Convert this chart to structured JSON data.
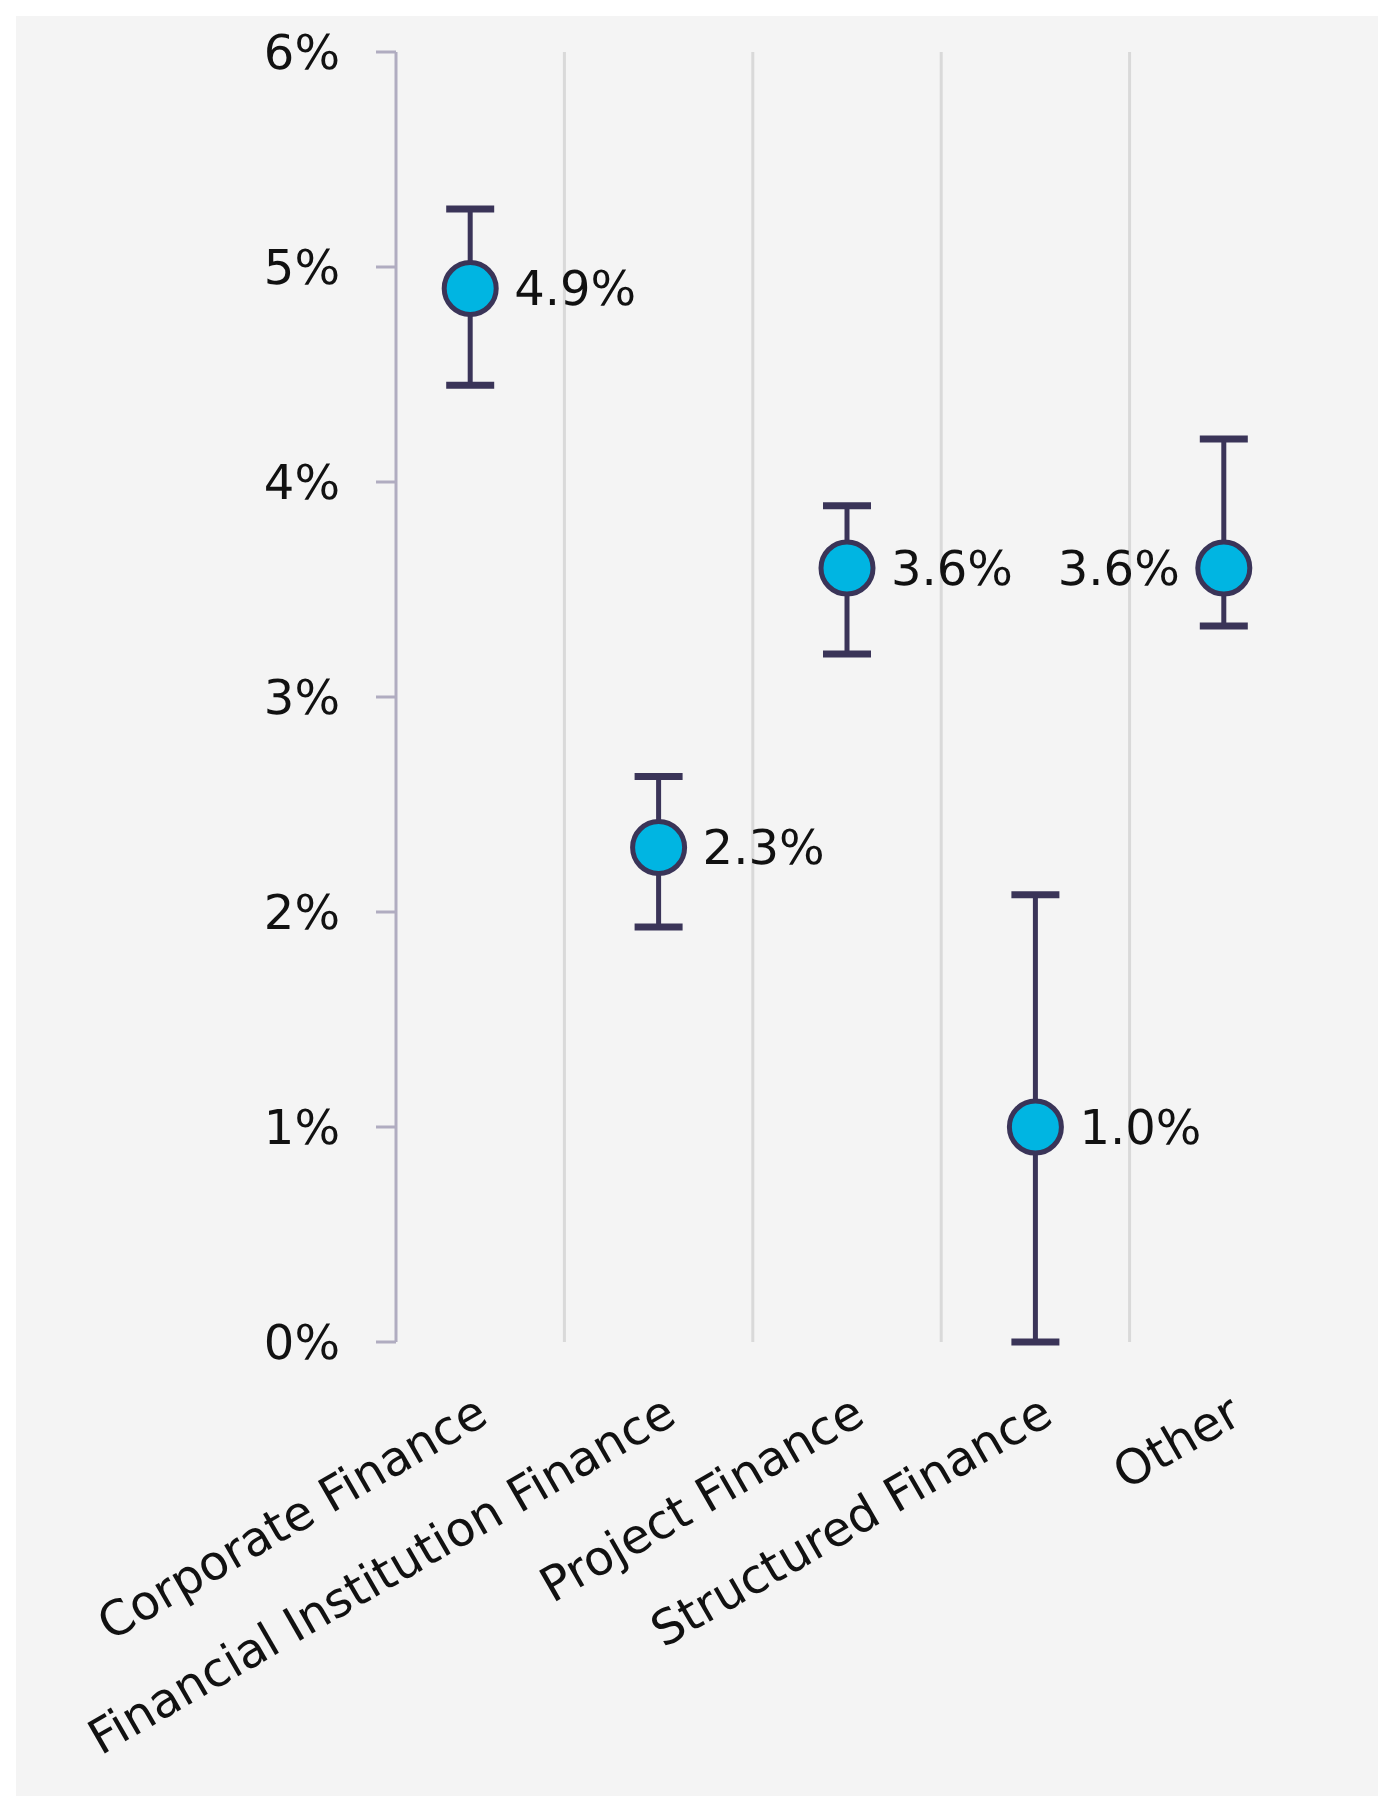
{
  "chart_data": {
    "type": "scatter",
    "categories": [
      "Corporate Finance",
      "Financial Institution Finance",
      "Project Finance",
      "Structured Finance",
      "Other"
    ],
    "series": [
      {
        "color": "#00b5e2",
        "values": [
          4.9,
          2.3,
          3.6,
          1.0,
          3.6
        ],
        "errors": [
          [
            4.45,
            5.27
          ],
          [
            1.93,
            2.63
          ],
          [
            3.2,
            3.89
          ],
          [
            0,
            2.08
          ],
          [
            3.33,
            4.2
          ]
        ],
        "value_labels": [
          "4.9%",
          "2.3%",
          "3.6%",
          "1.0%",
          "3.6%"
        ]
      }
    ],
    "ylim": [
      0,
      6
    ],
    "yticks": [
      {
        "value": 0,
        "label": "0%"
      },
      {
        "value": 1,
        "label": "1%"
      },
      {
        "value": 2,
        "label": "2%"
      },
      {
        "value": 3,
        "label": "3%"
      },
      {
        "value": 4,
        "label": "4%"
      },
      {
        "value": 5,
        "label": "5%"
      },
      {
        "value": 6,
        "label": "6%"
      }
    ],
    "grid": "x",
    "marker": "circle"
  }
}
